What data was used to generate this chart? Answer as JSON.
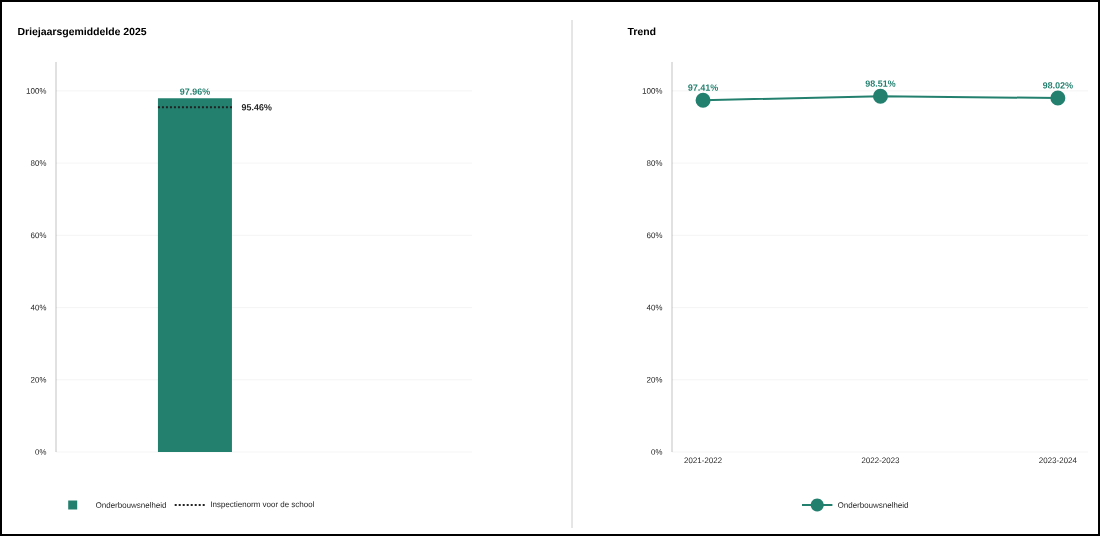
{
  "chart_data": [
    {
      "type": "bar",
      "title": "Driejaarsgemiddelde 2025",
      "categories": [
        null
      ],
      "series": [
        {
          "name": "Onderbouwsnelheid",
          "color": "#23806f",
          "values": [
            97.96
          ],
          "value_labels": [
            "97.96%"
          ]
        }
      ],
      "ylim": [
        0,
        108
      ],
      "yticks": [
        {
          "value": 0,
          "label": "0%"
        },
        {
          "value": 20,
          "label": "20%"
        },
        {
          "value": 40,
          "label": "40%"
        },
        {
          "value": 60,
          "label": "60%"
        },
        {
          "value": 80,
          "label": "80%"
        },
        {
          "value": 100,
          "label": "100%"
        }
      ],
      "grid": "y",
      "legend": "bottom",
      "ref_lines": [
        {
          "axis": "y",
          "value": 95.46,
          "label": "Inspectienorm voor de school",
          "color": "#222222",
          "line_style": "dotted"
        }
      ],
      "annotations": [
        "95.46%"
      ]
    },
    {
      "type": "line",
      "title": "Trend",
      "categories": [
        "2021-2022",
        "2022-2023",
        "2023-2024"
      ],
      "series": [
        {
          "name": "Onderbouwsnelheid",
          "color": "#23806f",
          "values": [
            97.41,
            98.51,
            98.02
          ],
          "value_labels": [
            "97.41%",
            "98.51%",
            "98.02%"
          ]
        }
      ],
      "ylim": [
        0,
        108
      ],
      "yticks": [
        {
          "value": 0,
          "label": "0%"
        },
        {
          "value": 20,
          "label": "20%"
        },
        {
          "value": 40,
          "label": "40%"
        },
        {
          "value": 60,
          "label": "60%"
        },
        {
          "value": 80,
          "label": "80%"
        },
        {
          "value": 100,
          "label": "100%"
        }
      ],
      "grid": "y",
      "legend": "bottom",
      "marker": "circle"
    }
  ]
}
